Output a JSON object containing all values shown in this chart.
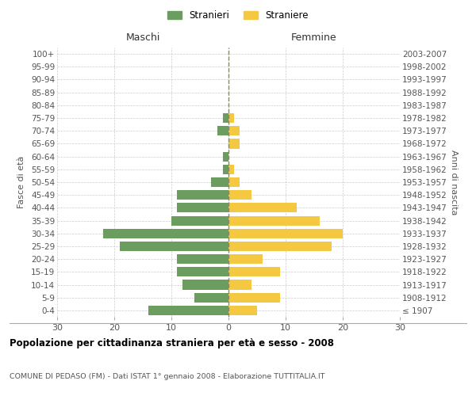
{
  "age_groups": [
    "100+",
    "95-99",
    "90-94",
    "85-89",
    "80-84",
    "75-79",
    "70-74",
    "65-69",
    "60-64",
    "55-59",
    "50-54",
    "45-49",
    "40-44",
    "35-39",
    "30-34",
    "25-29",
    "20-24",
    "15-19",
    "10-14",
    "5-9",
    "0-4"
  ],
  "birth_years": [
    "≤ 1907",
    "1908-1912",
    "1913-1917",
    "1918-1922",
    "1923-1927",
    "1928-1932",
    "1933-1937",
    "1938-1942",
    "1943-1947",
    "1948-1952",
    "1953-1957",
    "1958-1962",
    "1963-1967",
    "1968-1972",
    "1973-1977",
    "1978-1982",
    "1983-1987",
    "1988-1992",
    "1993-1997",
    "1998-2002",
    "2003-2007"
  ],
  "maschi": [
    0,
    0,
    0,
    0,
    0,
    1,
    2,
    0,
    1,
    1,
    3,
    9,
    9,
    10,
    22,
    19,
    9,
    9,
    8,
    6,
    14
  ],
  "femmine": [
    0,
    0,
    0,
    0,
    0,
    1,
    2,
    2,
    0,
    1,
    2,
    4,
    12,
    16,
    20,
    18,
    6,
    9,
    4,
    9,
    5
  ],
  "maschi_color": "#6b9e5e",
  "femmine_color": "#f5c842",
  "title": "Popolazione per cittadinanza straniera per età e sesso - 2008",
  "subtitle": "COMUNE DI PEDASO (FM) - Dati ISTAT 1° gennaio 2008 - Elaborazione TUTTITALIA.IT",
  "ylabel_left": "Fasce di età",
  "ylabel_right": "Anni di nascita",
  "xlabel_left": "Maschi",
  "xlabel_right": "Femmine",
  "legend_maschi": "Stranieri",
  "legend_femmine": "Straniere",
  "xlim": 30,
  "background_color": "#ffffff",
  "grid_color": "#cccccc"
}
